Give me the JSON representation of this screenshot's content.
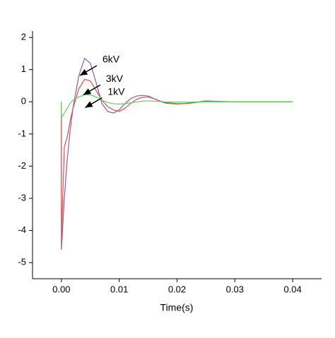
{
  "chart_data": {
    "type": "line",
    "xlabel": "Time(s)",
    "x": [
      0,
      0,
      0.0005,
      0.001,
      0.0015,
      0.002,
      0.003,
      0.004,
      0.005,
      0.006,
      0.007,
      0.008,
      0.009,
      0.01,
      0.011,
      0.012,
      0.013,
      0.014,
      0.015,
      0.016,
      0.017,
      0.018,
      0.02,
      0.022,
      0.025,
      0.028,
      0.03,
      0.035,
      0.04
    ],
    "series": [
      {
        "name": "6kV",
        "color": "#8e5aa8",
        "values": [
          0,
          -4.6,
          -3.0,
          -1.8,
          -0.9,
          -0.2,
          0.8,
          1.35,
          1.2,
          0.6,
          -0.05,
          -0.3,
          -0.35,
          -0.25,
          -0.05,
          0.1,
          0.18,
          0.2,
          0.18,
          0.1,
          0.02,
          -0.04,
          -0.07,
          -0.04,
          0.03,
          0.01,
          0,
          0,
          0
        ]
      },
      {
        "name": "3kV",
        "color": "#d9534f",
        "values": [
          0,
          -4.3,
          -1.4,
          -1.1,
          -0.6,
          -0.2,
          0.4,
          0.7,
          0.65,
          0.35,
          0.05,
          -0.15,
          -0.25,
          -0.3,
          -0.2,
          -0.05,
          0.08,
          0.14,
          0.15,
          0.1,
          0.03,
          -0.02,
          -0.06,
          -0.05,
          0.02,
          0.01,
          0,
          0,
          0
        ]
      },
      {
        "name": "1kV",
        "color": "#5fd35f",
        "values": [
          0,
          -0.5,
          -0.35,
          -0.2,
          -0.05,
          0.05,
          0.15,
          0.22,
          0.22,
          0.15,
          0.05,
          -0.02,
          -0.06,
          -0.07,
          -0.06,
          -0.03,
          0,
          0.02,
          0.03,
          0.02,
          0.01,
          0,
          -0.01,
          -0.01,
          0,
          0,
          0,
          0,
          0
        ]
      }
    ],
    "xlim": [
      -0.005,
      0.045
    ],
    "ylim": [
      -5.5,
      2.2
    ],
    "xticks": [
      {
        "value": 0,
        "label": "0.00"
      },
      {
        "value": 0.01,
        "label": "0.01"
      },
      {
        "value": 0.02,
        "label": "0.02"
      },
      {
        "value": 0.03,
        "label": "0.03"
      },
      {
        "value": 0.04,
        "label": "0.04"
      }
    ],
    "yticks": [
      -5,
      -4,
      -3,
      -2,
      -1,
      0,
      1,
      2
    ],
    "annotations": [
      {
        "series": 0,
        "x": 0.0071,
        "y": 1.3
      },
      {
        "series": 1,
        "x": 0.0077,
        "y": 0.7
      },
      {
        "series": 2,
        "x": 0.008,
        "y": 0.3
      }
    ]
  }
}
